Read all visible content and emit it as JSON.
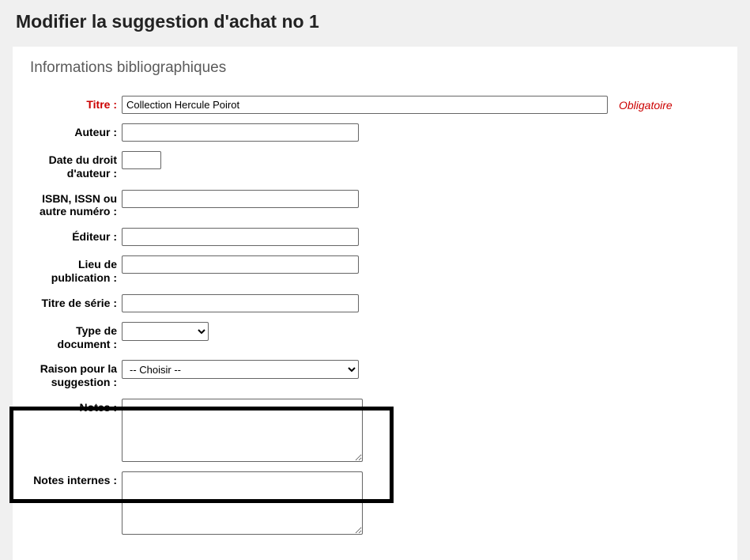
{
  "page": {
    "title": "Modifier la suggestion d'achat no 1"
  },
  "fieldset": {
    "legend": "Informations bibliographiques",
    "required_text": "Obligatoire"
  },
  "fields": {
    "title": {
      "label": "Titre :",
      "value": "Collection Hercule Poirot",
      "required": true
    },
    "author": {
      "label": "Auteur :",
      "value": ""
    },
    "copyright": {
      "label": "Date du droit d'auteur :",
      "value": ""
    },
    "isbn": {
      "label": "ISBN, ISSN ou autre numéro :",
      "value": ""
    },
    "publisher": {
      "label": "Éditeur :",
      "value": ""
    },
    "pub_place": {
      "label": "Lieu de publication :",
      "value": ""
    },
    "series": {
      "label": "Titre de série :",
      "value": ""
    },
    "doc_type": {
      "label": "Type de document :",
      "selected": ""
    },
    "reason": {
      "label": "Raison pour la suggestion :",
      "selected": "-- Choisir --"
    },
    "notes": {
      "label": "Notes :",
      "value": ""
    },
    "internal": {
      "label": "Notes internes :",
      "value": ""
    }
  }
}
